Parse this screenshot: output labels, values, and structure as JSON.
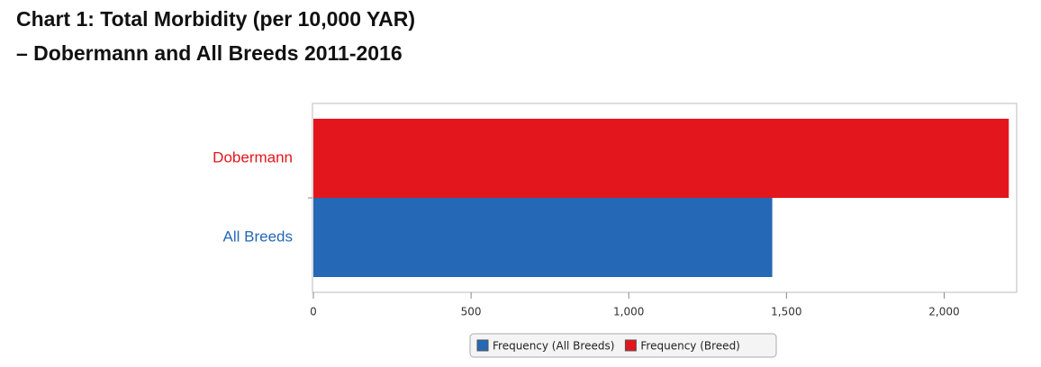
{
  "chart_data": {
    "type": "hbar",
    "title": "Chart 1: Total Morbidity (per 10,000 YAR)",
    "subtitle": "– Dobermann and All Breeds 2011-2016",
    "categories": [
      "Dobermann",
      "All Breeds"
    ],
    "series": [
      {
        "name": "Frequency (All Breeds)",
        "color": "#2568b6",
        "values": [
          null,
          1455
        ]
      },
      {
        "name": "Frequency (Breed)",
        "color": "#e3161e",
        "values": [
          2205,
          null
        ]
      }
    ],
    "xlim": [
      0,
      2230
    ],
    "xticks": [
      0,
      500,
      {
        "value": 1000,
        "label": "1,000"
      },
      {
        "value": 1500,
        "label": "1,500"
      },
      {
        "value": 2000,
        "label": "2,000"
      }
    ],
    "grid": false
  }
}
